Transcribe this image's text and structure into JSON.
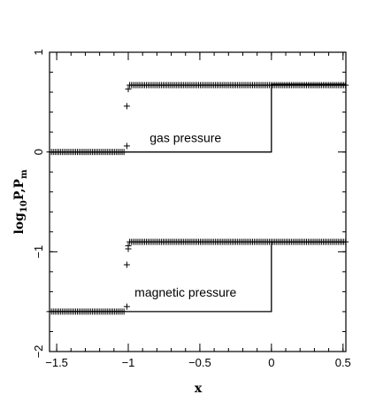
{
  "chart_data": {
    "type": "scatter",
    "title": "",
    "xlabel": "x",
    "ylabel": "log10P,Pm",
    "ylabel_parts": {
      "base": "log",
      "base_sub": "10",
      "mid": "P,P",
      "tail_sub": "m"
    },
    "xlim": [
      -1.55,
      0.52
    ],
    "ylim": [
      -2,
      1
    ],
    "x_ticks": [
      -1.5,
      -1,
      -0.5,
      0,
      0.5
    ],
    "x_tick_labels": [
      "−1.5",
      "−1",
      "−0.5",
      "0",
      "0.5"
    ],
    "y_ticks": [
      -2,
      -1,
      0,
      1
    ],
    "y_tick_labels": [
      "−2",
      "−1",
      "0",
      "1"
    ],
    "grid": false,
    "annotations": [
      {
        "text": "gas pressure",
        "x": -0.6,
        "y": 0.1
      },
      {
        "text": "magnetic pressure",
        "x": -0.6,
        "y": -1.45
      }
    ],
    "series": [
      {
        "kind": "exact-line",
        "x": [
          -1.55,
          0.0,
          0.0,
          0.52
        ],
        "y": [
          0.0,
          0.0,
          0.68,
          0.68
        ]
      },
      {
        "kind": "numerical-markers",
        "marker": "+",
        "segments": [
          {
            "x_from": -1.55,
            "x_to": -1.03,
            "y": 0.0
          },
          {
            "x_from": -0.99,
            "x_to": 0.52,
            "y": 0.67
          }
        ],
        "transition": {
          "x": [
            -1.01,
            -1.01,
            -1.0
          ],
          "y": [
            0.06,
            0.46,
            0.63
          ]
        }
      },
      {
        "kind": "exact-line",
        "x": [
          -1.55,
          0.0,
          0.0,
          0.52
        ],
        "y": [
          -1.6,
          -1.6,
          -0.9,
          -0.9
        ]
      },
      {
        "kind": "numerical-markers",
        "marker": "+",
        "segments": [
          {
            "x_from": -1.55,
            "x_to": -1.03,
            "y": -1.6
          },
          {
            "x_from": -0.99,
            "x_to": 0.52,
            "y": -0.9
          }
        ],
        "transition": {
          "x": [
            -1.01,
            -1.01,
            -1.0,
            -1.0
          ],
          "y": [
            -1.55,
            -1.13,
            -0.97,
            -0.94
          ]
        }
      }
    ]
  }
}
